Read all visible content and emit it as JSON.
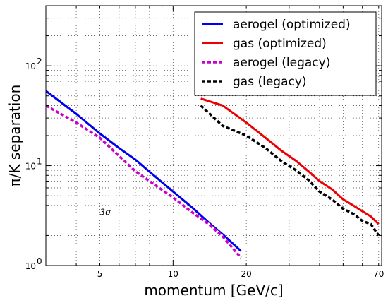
{
  "chart_data": {
    "type": "line",
    "xlabel": "momentum [GeV/c]",
    "ylabel": "π/K separation",
    "xscale": "log",
    "yscale": "log",
    "xlim": [
      3.0,
      72.0
    ],
    "ylim": [
      1.0,
      400.0
    ],
    "grid": true,
    "legend_position": "top-right",
    "x_ticks": [
      {
        "value": 5,
        "label": "5"
      },
      {
        "value": 10,
        "label": "10"
      },
      {
        "value": 20,
        "label": "20"
      },
      {
        "value": 70,
        "label": "70"
      }
    ],
    "y_ticks": [
      {
        "value": 1,
        "base": "10",
        "exp": "0"
      },
      {
        "value": 10,
        "base": "10",
        "exp": "1"
      },
      {
        "value": 100,
        "base": "10",
        "exp": "2"
      }
    ],
    "series": [
      {
        "name": "aerogel (optimized)",
        "color": "#0000ee",
        "style": "solid",
        "x": [
          3.0,
          4.0,
          5.0,
          6.0,
          7.0,
          8.0,
          10.0,
          12.0,
          14.0,
          16.0,
          19.0
        ],
        "y": [
          56,
          33,
          21,
          15,
          11.5,
          8.7,
          5.5,
          3.8,
          2.7,
          2.05,
          1.4
        ]
      },
      {
        "name": "gas (optimized)",
        "color": "#ee0000",
        "style": "solid",
        "x": [
          13.0,
          16.0,
          20.0,
          24.0,
          28.0,
          32.0,
          36.0,
          40.0,
          45.0,
          50.0,
          55.0,
          60.0,
          65.0,
          70.0
        ],
        "y": [
          47,
          40,
          27,
          19,
          14,
          11.2,
          8.8,
          7.0,
          5.8,
          4.6,
          4.0,
          3.5,
          3.1,
          2.6
        ]
      },
      {
        "name": "aerogel (legacy)",
        "color": "#cc00cc",
        "style": "dashed",
        "x": [
          3.0,
          4.0,
          5.0,
          6.0,
          7.0,
          8.0,
          10.0,
          12.0,
          14.0,
          16.0,
          19.0
        ],
        "y": [
          40,
          27,
          19,
          12.5,
          8.8,
          7.0,
          4.8,
          3.4,
          2.6,
          1.95,
          1.2
        ]
      },
      {
        "name": "gas (legacy)",
        "color": "#000000",
        "style": "dashed",
        "x": [
          13.0,
          16.0,
          20.0,
          24.0,
          28.0,
          32.0,
          36.0,
          40.0,
          45.0,
          50.0,
          55.0,
          60.0,
          65.0,
          70.0
        ],
        "y": [
          40,
          25,
          20,
          15,
          11,
          9.0,
          7.2,
          5.5,
          4.6,
          3.7,
          3.3,
          2.8,
          2.6,
          2.0
        ]
      }
    ],
    "reference_lines": [
      {
        "label": "3σ",
        "y": 3.0,
        "color": "#006600",
        "style": "dashdot",
        "label_x": 5.0
      }
    ]
  }
}
